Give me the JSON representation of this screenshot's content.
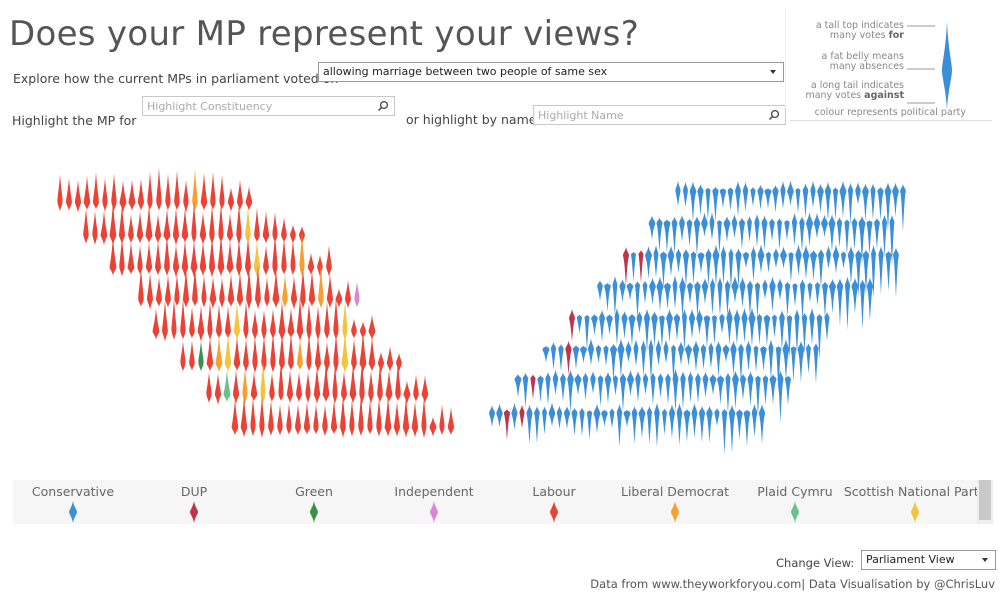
{
  "title": "Does your MP represent your views?",
  "vote_selector": {
    "label": "Explore how the current MPs in parliament voted on",
    "selected": "allowing marriage between two people of same sex"
  },
  "constituency_search": {
    "label": "Highlight the MP for",
    "placeholder": "Highlight Constituency"
  },
  "name_search": {
    "label": "or highlight by name",
    "placeholder": "Highlight Name"
  },
  "key": {
    "line1a": "a tall top indicates",
    "line1b_pre": "many votes ",
    "line1b_bold": "for",
    "line2a": "a fat belly means",
    "line2b": "many absences",
    "line3a": "a long tail indicates",
    "line3b_pre": "many votes ",
    "line3b_bold": "against",
    "colour_note": "colour represents political party"
  },
  "parties": [
    {
      "name": "Conservative",
      "color": "#3b8ed8"
    },
    {
      "name": "DUP",
      "color": "#c0334d"
    },
    {
      "name": "Green",
      "color": "#3a8f4a"
    },
    {
      "name": "Independent",
      "color": "#d888d2"
    },
    {
      "name": "Labour",
      "color": "#ea4335"
    },
    {
      "name": "Liberal Democrat",
      "color": "#f5a12f"
    },
    {
      "name": "Plaid Cymru",
      "color": "#6cc08c"
    },
    {
      "name": "Scottish National Party",
      "color": "#f2c53d"
    }
  ],
  "change_view": {
    "label": "Change View:",
    "selected": "Parliament View"
  },
  "footer": "Data from www.theyworkforyou.com| Data Visualisation by @ChrisLuv"
}
